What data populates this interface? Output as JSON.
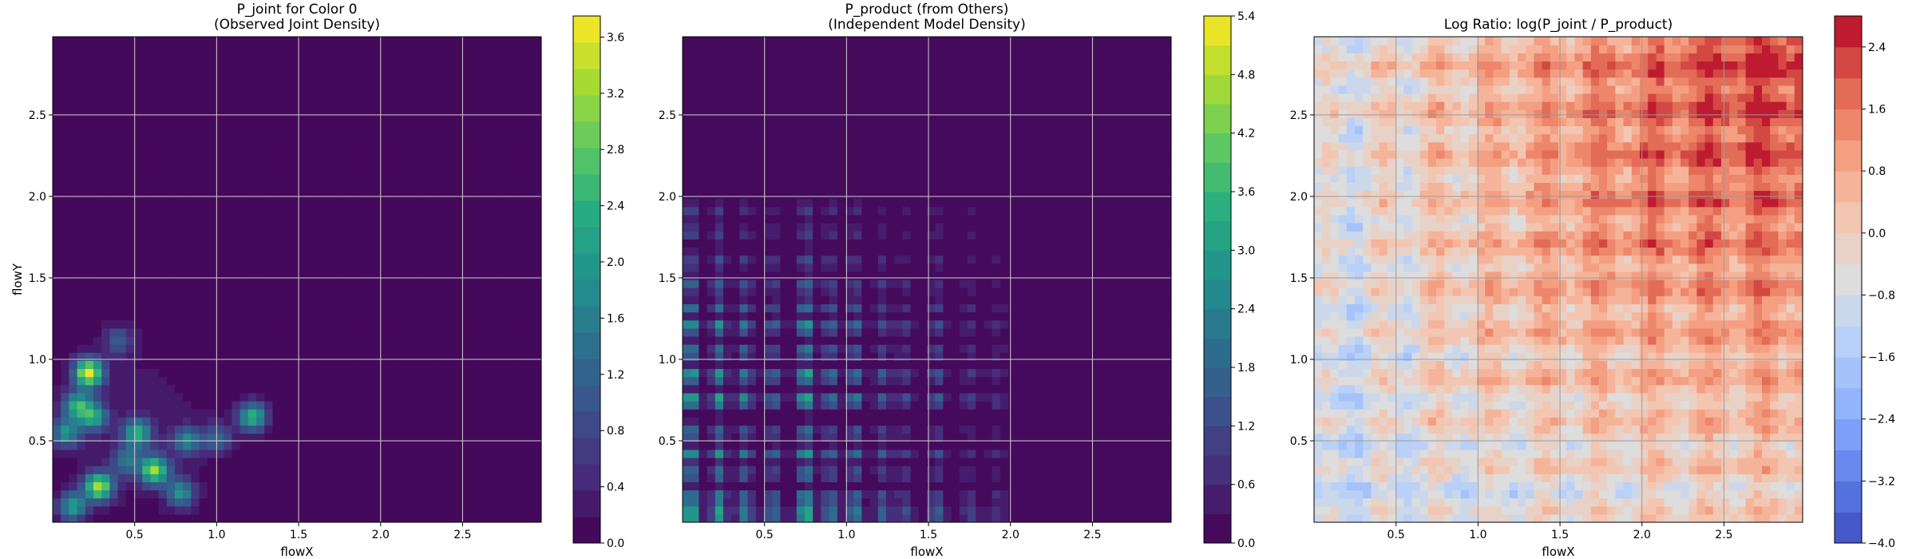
{
  "chart_data": [
    {
      "type": "heatmap",
      "title_line1": "P_joint for Color 0",
      "title_line2": "(Observed Joint Density)",
      "xlabel": "flowX",
      "ylabel": "flowY",
      "xlim": [
        0,
        2.98
      ],
      "ylim": [
        0,
        2.98
      ],
      "xticks": [
        0.5,
        1.0,
        1.5,
        2.0,
        2.5
      ],
      "yticks": [
        0.5,
        1.0,
        1.5,
        2.0,
        2.5
      ],
      "xtick_labels": [
        "0.5",
        "1.0",
        "1.5",
        "2.0",
        "2.5"
      ],
      "ytick_labels": [
        "0.5",
        "1.0",
        "1.5",
        "2.0",
        "2.5"
      ],
      "grid": true,
      "colormap": "viridis",
      "colorbar": {
        "min": 0.0,
        "max": 3.75,
        "levels": 20,
        "ticks": [
          0.0,
          0.4,
          0.8,
          1.2,
          1.6,
          2.0,
          2.4,
          2.8,
          3.2,
          3.6
        ],
        "tick_labels": [
          "0.0",
          "0.4",
          "0.8",
          "1.2",
          "1.6",
          "2.0",
          "2.4",
          "2.8",
          "3.2",
          "3.6"
        ]
      },
      "hotspots": [
        {
          "x": 0.22,
          "y": 0.92,
          "value": 3.6
        },
        {
          "x": 0.15,
          "y": 0.72,
          "value": 2.2
        },
        {
          "x": 0.25,
          "y": 0.65,
          "value": 2.0
        },
        {
          "x": 0.08,
          "y": 0.55,
          "value": 1.8
        },
        {
          "x": 0.28,
          "y": 0.22,
          "value": 3.2
        },
        {
          "x": 0.12,
          "y": 0.1,
          "value": 2.0
        },
        {
          "x": 0.52,
          "y": 0.55,
          "value": 2.2
        },
        {
          "x": 0.62,
          "y": 0.32,
          "value": 3.0
        },
        {
          "x": 0.78,
          "y": 0.18,
          "value": 1.8
        },
        {
          "x": 0.82,
          "y": 0.5,
          "value": 1.6
        },
        {
          "x": 1.0,
          "y": 0.52,
          "value": 1.2
        },
        {
          "x": 1.22,
          "y": 0.65,
          "value": 2.4
        },
        {
          "x": 0.4,
          "y": 1.12,
          "value": 1.0
        },
        {
          "x": 0.45,
          "y": 0.38,
          "value": 1.4
        }
      ]
    },
    {
      "type": "heatmap",
      "title_line1": "P_product (from Others)",
      "title_line2": "(Independent Model Density)",
      "xlabel": "flowX",
      "ylabel": "",
      "xlim": [
        0,
        2.98
      ],
      "ylim": [
        0,
        2.98
      ],
      "xticks": [
        0.5,
        1.0,
        1.5,
        2.0,
        2.5
      ],
      "yticks": [
        0.5,
        1.0,
        1.5,
        2.0,
        2.5
      ],
      "xtick_labels": [
        "0.5",
        "1.0",
        "1.5",
        "2.0",
        "2.5"
      ],
      "ytick_labels": [
        "0.5",
        "1.0",
        "1.5",
        "2.0",
        "2.5"
      ],
      "grid": true,
      "colormap": "viridis",
      "colorbar": {
        "min": 0.0,
        "max": 5.4,
        "levels": 18,
        "ticks": [
          0.0,
          0.6,
          1.2,
          1.8,
          2.4,
          3.0,
          3.6,
          4.2,
          4.8,
          5.4
        ],
        "tick_labels": [
          "0.0",
          "0.6",
          "1.2",
          "1.8",
          "2.4",
          "3.0",
          "3.6",
          "4.2",
          "4.8",
          "5.4"
        ]
      },
      "marginal_x": [
        {
          "x": 0.05,
          "w": 2.3
        },
        {
          "x": 0.22,
          "w": 1.8
        },
        {
          "x": 0.38,
          "w": 1.4
        },
        {
          "x": 0.55,
          "w": 1.2
        },
        {
          "x": 0.75,
          "w": 2.3
        },
        {
          "x": 0.9,
          "w": 1.3
        },
        {
          "x": 1.05,
          "w": 1.4
        },
        {
          "x": 1.22,
          "w": 0.9
        },
        {
          "x": 1.35,
          "w": 0.7
        },
        {
          "x": 1.55,
          "w": 0.9
        },
        {
          "x": 1.75,
          "w": 0.5
        },
        {
          "x": 1.92,
          "w": 0.4
        }
      ],
      "marginal_y": [
        {
          "y": 0.05,
          "w": 2.3
        },
        {
          "y": 0.15,
          "w": 1.6
        },
        {
          "y": 0.3,
          "w": 1.2
        },
        {
          "y": 0.42,
          "w": 1.3
        },
        {
          "y": 0.55,
          "w": 1.1
        },
        {
          "y": 0.75,
          "w": 2.0
        },
        {
          "y": 0.9,
          "w": 1.8
        },
        {
          "y": 1.05,
          "w": 1.2
        },
        {
          "y": 1.2,
          "w": 1.6
        },
        {
          "y": 1.32,
          "w": 0.9
        },
        {
          "y": 1.45,
          "w": 0.9
        },
        {
          "y": 1.6,
          "w": 0.6
        },
        {
          "y": 1.78,
          "w": 0.5
        },
        {
          "y": 1.92,
          "w": 0.4
        }
      ],
      "support_max": 2.0
    },
    {
      "type": "heatmap",
      "title_line1": "Log Ratio: log(P_joint / P_product)",
      "title_line2": "",
      "xlabel": "flowX",
      "ylabel": "",
      "xlim": [
        0,
        2.98
      ],
      "ylim": [
        0,
        2.98
      ],
      "xticks": [
        0.5,
        1.0,
        1.5,
        2.0,
        2.5
      ],
      "yticks": [
        0.5,
        1.0,
        1.5,
        2.0,
        2.5
      ],
      "xtick_labels": [
        "0.5",
        "1.0",
        "1.5",
        "2.0",
        "2.5"
      ],
      "ytick_labels": [
        "0.5",
        "1.0",
        "1.5",
        "2.0",
        "2.5"
      ],
      "grid": true,
      "colormap": "coolwarm",
      "colorbar": {
        "min": -4.0,
        "max": 2.8,
        "levels": 17,
        "ticks": [
          -4.0,
          -3.2,
          -2.4,
          -1.6,
          -0.8,
          0.0,
          0.8,
          1.6,
          2.4
        ],
        "tick_labels": [
          "−4.0",
          "−3.2",
          "−2.4",
          "−1.6",
          "−0.8",
          "0.0",
          "0.8",
          "1.6",
          "2.4"
        ]
      }
    }
  ]
}
